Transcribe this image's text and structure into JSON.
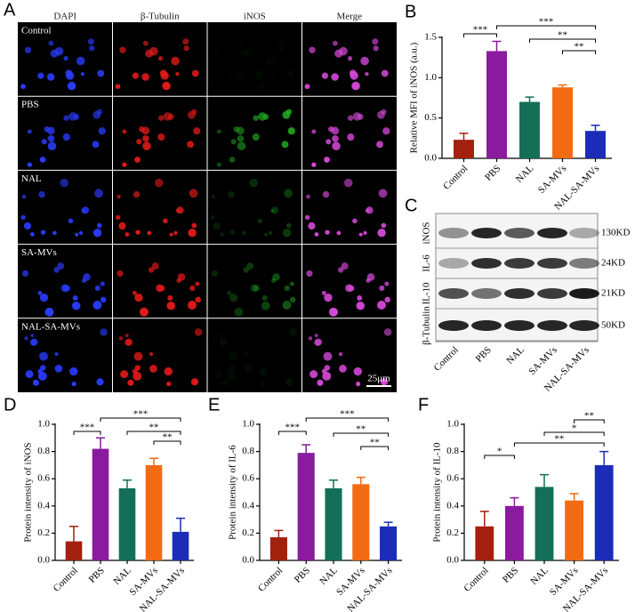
{
  "figure": {
    "panel_a": {
      "label": "A",
      "columns": [
        "DAPI",
        "β-Tubulin",
        "iNOS",
        "Merge"
      ],
      "rows": [
        "Control",
        "PBS",
        "NAL",
        "SA-MVs",
        "NAL-SA-MVs"
      ],
      "scale_bar": "25μm"
    },
    "panel_c": {
      "label": "C",
      "proteins": [
        "iNOS",
        "IL-6",
        "IL-10",
        "β-Tubulin"
      ],
      "sizes": [
        "130KD",
        "24KD",
        "21KD",
        "50KD"
      ],
      "lanes": [
        "Control",
        "PBS",
        "NAL",
        "SA-MVs",
        "NAL-SA-MVs"
      ]
    }
  },
  "chart_data": [
    {
      "type": "bar",
      "panel": "B",
      "y_label": "Relative MFI of iNOS (a.u.)",
      "categories": [
        "Control",
        "PBS",
        "NAL",
        "SA-MVs",
        "NAL-SA-MVs"
      ],
      "values": [
        0.23,
        1.33,
        0.7,
        0.88,
        0.34
      ],
      "errors": [
        0.08,
        0.12,
        0.06,
        0.03,
        0.07
      ],
      "colors": [
        "#a3200f",
        "#8a1a9e",
        "#137056",
        "#f26a12",
        "#1a2cb8"
      ],
      "ylim": [
        0,
        1.5
      ],
      "yticks": [
        {
          "value": 0,
          "label": "0.0"
        },
        {
          "value": 0.5,
          "label": "0.5"
        },
        {
          "value": 1,
          "label": "1.0"
        },
        {
          "value": 1.5,
          "label": "1.5"
        }
      ],
      "significance": [
        {
          "label": "***",
          "between": [
            "Control",
            "PBS"
          ]
        },
        {
          "label": "***",
          "between": [
            "PBS",
            "NAL-SA-MVs"
          ]
        },
        {
          "label": "**",
          "between": [
            "NAL",
            "NAL-SA-MVs"
          ]
        },
        {
          "label": "**",
          "between": [
            "SA-MVs",
            "NAL-SA-MVs"
          ]
        }
      ]
    },
    {
      "type": "bar",
      "panel": "D",
      "y_label": "Protein intensity of  iNOS",
      "categories": [
        "Control",
        "PBS",
        "NAL",
        "SA-MVs",
        "NAL-SA-MVs"
      ],
      "values": [
        0.14,
        0.82,
        0.53,
        0.7,
        0.21
      ],
      "errors": [
        0.11,
        0.08,
        0.06,
        0.05,
        0.1
      ],
      "colors": [
        "#a3200f",
        "#8a1a9e",
        "#137056",
        "#f26a12",
        "#1a2cb8"
      ],
      "ylim": [
        0,
        1
      ],
      "yticks": [
        {
          "value": 0,
          "label": "0.0"
        },
        0.2,
        0.4,
        0.6,
        0.8,
        {
          "value": 1,
          "label": "1.0"
        }
      ],
      "significance": [
        {
          "label": "***",
          "between": [
            "Control",
            "PBS"
          ]
        },
        {
          "label": "***",
          "between": [
            "PBS",
            "NAL-SA-MVs"
          ]
        },
        {
          "label": "**",
          "between": [
            "NAL",
            "NAL-SA-MVs"
          ]
        },
        {
          "label": "**",
          "between": [
            "SA-MVs",
            "NAL-SA-MVs"
          ]
        }
      ]
    },
    {
      "type": "bar",
      "panel": "E",
      "y_label": "Protein intensity of IL-6",
      "categories": [
        "Control",
        "PBS",
        "NAL",
        "SA-MVs",
        "NAL-SA-MVs"
      ],
      "values": [
        0.17,
        0.79,
        0.53,
        0.56,
        0.25
      ],
      "errors": [
        0.05,
        0.06,
        0.06,
        0.05,
        0.03
      ],
      "colors": [
        "#a3200f",
        "#8a1a9e",
        "#137056",
        "#f26a12",
        "#1a2cb8"
      ],
      "ylim": [
        0,
        1
      ],
      "yticks": [
        {
          "value": 0,
          "label": "0.0"
        },
        0.2,
        0.4,
        0.6,
        0.8,
        {
          "value": 1,
          "label": "1.0"
        }
      ],
      "significance": [
        {
          "label": "***",
          "between": [
            "Control",
            "PBS"
          ]
        },
        {
          "label": "***",
          "between": [
            "PBS",
            "NAL-SA-MVs"
          ]
        },
        {
          "label": "**",
          "between": [
            "NAL",
            "NAL-SA-MVs"
          ]
        },
        {
          "label": "**",
          "between": [
            "SA-MVs",
            "NAL-SA-MVs"
          ]
        }
      ]
    },
    {
      "type": "bar",
      "panel": "F",
      "y_label": "Protein intensity of  IL-10",
      "categories": [
        "Control",
        "PBS",
        "NAL",
        "SA-MVs",
        "NAL-SA-MVs"
      ],
      "values": [
        0.25,
        0.4,
        0.54,
        0.44,
        0.7
      ],
      "errors": [
        0.11,
        0.06,
        0.09,
        0.05,
        0.1
      ],
      "colors": [
        "#a3200f",
        "#8a1a9e",
        "#137056",
        "#f26a12",
        "#1a2cb8"
      ],
      "ylim": [
        0,
        1
      ],
      "yticks": [
        {
          "value": 0,
          "label": "0.0"
        },
        0.2,
        0.4,
        0.6,
        0.8,
        {
          "value": 1,
          "label": "1.0"
        }
      ],
      "significance": [
        {
          "label": "*",
          "between": [
            "Control",
            "PBS"
          ]
        },
        {
          "label": "**",
          "between": [
            "PBS",
            "NAL-SA-MVs"
          ]
        },
        {
          "label": "*",
          "between": [
            "NAL",
            "NAL-SA-MVs"
          ]
        },
        {
          "label": "**",
          "between": [
            "SA-MVs",
            "NAL-SA-MVs"
          ]
        }
      ]
    }
  ]
}
